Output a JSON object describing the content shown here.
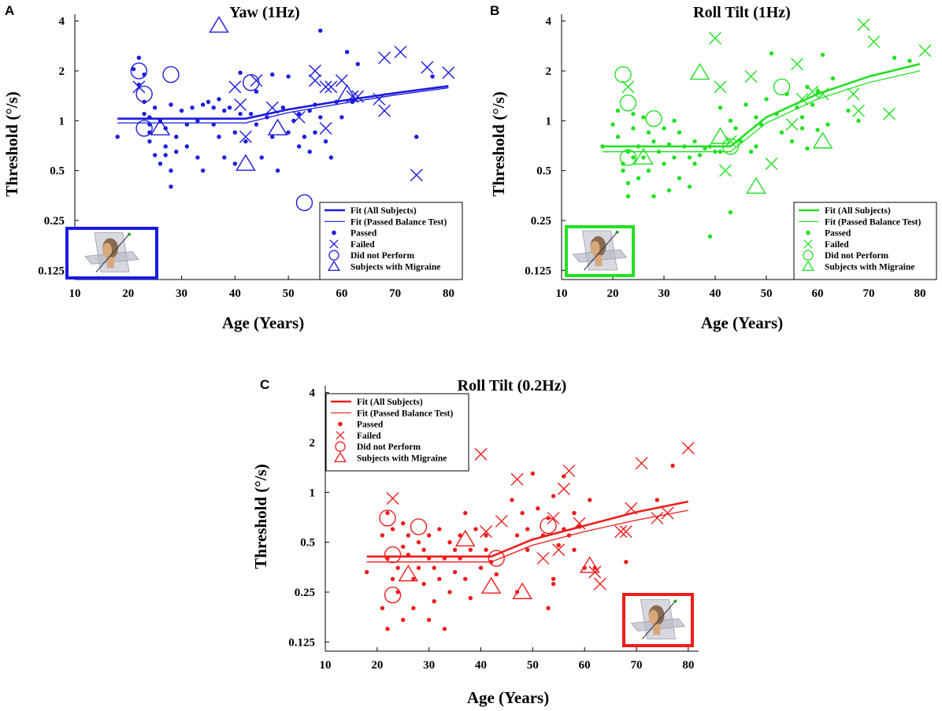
{
  "chart_data": [
    {
      "panel": "A",
      "type": "scatter",
      "title": "Yaw (1Hz)",
      "xlabel": "Age (Years)",
      "ylabel": "Threshold (°/s)",
      "xlim": [
        10,
        82
      ],
      "ylim": [
        0.11,
        4.4
      ],
      "xticks": [
        "10",
        "20",
        "30",
        "40",
        "50",
        "60",
        "70",
        "80"
      ],
      "yticks": [
        "0.125",
        "0.25",
        "0.5",
        "1",
        "2",
        "4"
      ],
      "color": "#1a1adf",
      "legend": [
        "Fit (All Subjects)",
        "Fit (Passed Balance Test)",
        "Passed",
        "Failed",
        "Did not Perform",
        "Subjects with Migraine"
      ],
      "legend_position": "lower-right",
      "inset_position": "lower-left",
      "fit_all": {
        "x": [
          18,
          42,
          50,
          60,
          70,
          80
        ],
        "y": [
          1.03,
          1.03,
          1.17,
          1.32,
          1.47,
          1.62
        ]
      },
      "fit_passed": {
        "x": [
          18,
          42,
          50,
          60,
          70,
          80
        ],
        "y": [
          0.97,
          0.97,
          1.12,
          1.27,
          1.43,
          1.58
        ]
      },
      "passed": [
        [
          18,
          0.8
        ],
        [
          21,
          2.05
        ],
        [
          22,
          2.4
        ],
        [
          23,
          1.9
        ],
        [
          22,
          1.65
        ],
        [
          23,
          1.3
        ],
        [
          23,
          1.1
        ],
        [
          24,
          1.05
        ],
        [
          24,
          0.95
        ],
        [
          24,
          0.85
        ],
        [
          24,
          0.75
        ],
        [
          25,
          1.2
        ],
        [
          25,
          0.62
        ],
        [
          26,
          1.0
        ],
        [
          26,
          0.55
        ],
        [
          27,
          0.9
        ],
        [
          27,
          0.7
        ],
        [
          27,
          0.62
        ],
        [
          28,
          1.25
        ],
        [
          28,
          0.5
        ],
        [
          28,
          0.4
        ],
        [
          29,
          0.8
        ],
        [
          29,
          0.65
        ],
        [
          30,
          1.15
        ],
        [
          31,
          0.95
        ],
        [
          31,
          0.7
        ],
        [
          32,
          1.2
        ],
        [
          33,
          1.0
        ],
        [
          33,
          0.6
        ],
        [
          34,
          1.25
        ],
        [
          34,
          0.5
        ],
        [
          35,
          1.3
        ],
        [
          36,
          1.2
        ],
        [
          36,
          0.95
        ],
        [
          37,
          1.35
        ],
        [
          37,
          0.8
        ],
        [
          38,
          1.15
        ],
        [
          38,
          0.6
        ],
        [
          39,
          1.2
        ],
        [
          40,
          0.85
        ],
        [
          40,
          0.55
        ],
        [
          41,
          1.95
        ],
        [
          41,
          1.1
        ],
        [
          42,
          0.75
        ],
        [
          43,
          1.1
        ],
        [
          44,
          1.5
        ],
        [
          44,
          0.95
        ],
        [
          45,
          0.6
        ],
        [
          46,
          1.05
        ],
        [
          47,
          0.8
        ],
        [
          47,
          1.9
        ],
        [
          48,
          0.5
        ],
        [
          49,
          1.2
        ],
        [
          50,
          0.85
        ],
        [
          50,
          1.85
        ],
        [
          51,
          1.0
        ],
        [
          52,
          0.7
        ],
        [
          52,
          1.1
        ],
        [
          53,
          0.8
        ],
        [
          54,
          1.15
        ],
        [
          54,
          0.65
        ],
        [
          55,
          0.85
        ],
        [
          55,
          1.25
        ],
        [
          56,
          3.5
        ],
        [
          56,
          1.05
        ],
        [
          57,
          0.75
        ],
        [
          58,
          0.6
        ],
        [
          59,
          1.3
        ],
        [
          60,
          1.05
        ],
        [
          61,
          2.6
        ],
        [
          62,
          1.3
        ],
        [
          63,
          2.2
        ],
        [
          74,
          0.8
        ],
        [
          77,
          1.85
        ]
      ],
      "failed": [
        [
          22,
          1.6
        ],
        [
          40,
          1.6
        ],
        [
          41,
          1.25
        ],
        [
          42,
          0.8
        ],
        [
          44,
          1.75
        ],
        [
          47,
          1.2
        ],
        [
          52,
          1.05
        ],
        [
          55,
          1.75
        ],
        [
          55,
          2.0
        ],
        [
          57,
          0.9
        ],
        [
          57,
          1.6
        ],
        [
          58,
          1.6
        ],
        [
          60,
          1.75
        ],
        [
          62,
          1.4
        ],
        [
          63,
          1.4
        ],
        [
          67,
          1.35
        ],
        [
          68,
          1.15
        ],
        [
          68,
          2.4
        ],
        [
          71,
          2.6
        ],
        [
          74,
          0.47
        ],
        [
          76,
          2.1
        ],
        [
          80,
          1.95
        ]
      ],
      "did_not_perform": [
        [
          22,
          2.0
        ],
        [
          23,
          1.45
        ],
        [
          23,
          0.9
        ],
        [
          28,
          1.9
        ],
        [
          43,
          1.7
        ],
        [
          53,
          0.32
        ]
      ],
      "migraine": [
        [
          26,
          0.9
        ],
        [
          37,
          3.75
        ],
        [
          42,
          0.55
        ],
        [
          48,
          0.9
        ],
        [
          61,
          1.45
        ]
      ],
      "inset": {
        "border_color": "#1a1adf"
      }
    },
    {
      "panel": "B",
      "type": "scatter",
      "title": "Roll Tilt (1Hz)",
      "xlabel": "Age (Years)",
      "ylabel": "Threshold (°/s)",
      "xlim": [
        10,
        82
      ],
      "ylim": [
        0.11,
        4.4
      ],
      "xticks": [
        "10",
        "20",
        "30",
        "40",
        "50",
        "60",
        "70",
        "80"
      ],
      "yticks": [
        "0.125",
        "0.25",
        "0.5",
        "1",
        "2",
        "4"
      ],
      "color": "#22e022",
      "legend": [
        "Fit (All Subjects)",
        "Fit (Passed Balance Test)",
        "Passed",
        "Failed",
        "Did not Perform",
        "Subjects with Migraine"
      ],
      "legend_position": "lower-right",
      "inset_position": "lower-left",
      "fit_all": {
        "x": [
          18,
          43,
          50,
          60,
          70,
          80
        ],
        "y": [
          0.7,
          0.7,
          1.05,
          1.45,
          1.85,
          2.2
        ]
      },
      "fit_passed": {
        "x": [
          18,
          43,
          50,
          60,
          70,
          80
        ],
        "y": [
          0.65,
          0.65,
          0.97,
          1.35,
          1.7,
          2.0
        ]
      },
      "passed": [
        [
          18,
          0.7
        ],
        [
          20,
          0.95
        ],
        [
          21,
          1.15
        ],
        [
          21,
          0.8
        ],
        [
          22,
          0.55
        ],
        [
          22,
          0.5
        ],
        [
          23,
          0.65
        ],
        [
          23,
          0.42
        ],
        [
          23,
          0.35
        ],
        [
          24,
          1.1
        ],
        [
          24,
          0.9
        ],
        [
          24,
          0.6
        ],
        [
          25,
          0.7
        ],
        [
          25,
          0.45
        ],
        [
          26,
          1.05
        ],
        [
          26,
          0.6
        ],
        [
          27,
          0.85
        ],
        [
          27,
          0.5
        ],
        [
          28,
          0.75
        ],
        [
          28,
          0.35
        ],
        [
          29,
          0.65
        ],
        [
          30,
          0.9
        ],
        [
          30,
          0.55
        ],
        [
          31,
          0.72
        ],
        [
          31,
          0.38
        ],
        [
          32,
          1.0
        ],
        [
          32,
          0.6
        ],
        [
          33,
          0.45
        ],
        [
          33,
          0.85
        ],
        [
          34,
          0.7
        ],
        [
          35,
          0.6
        ],
        [
          35,
          0.4
        ],
        [
          36,
          0.75
        ],
        [
          36,
          0.55
        ],
        [
          37,
          0.62
        ],
        [
          38,
          0.68
        ],
        [
          39,
          0.7
        ],
        [
          39,
          0.2
        ],
        [
          40,
          0.65
        ],
        [
          41,
          1.2
        ],
        [
          41,
          0.65
        ],
        [
          43,
          1.0
        ],
        [
          43,
          0.28
        ],
        [
          44,
          0.9
        ],
        [
          45,
          0.75
        ],
        [
          46,
          1.25
        ],
        [
          47,
          0.65
        ],
        [
          48,
          0.7
        ],
        [
          48,
          1.05
        ],
        [
          49,
          0.95
        ],
        [
          50,
          1.35
        ],
        [
          51,
          2.55
        ],
        [
          52,
          1.1
        ],
        [
          53,
          0.85
        ],
        [
          54,
          1.45
        ],
        [
          55,
          0.75
        ],
        [
          56,
          1.2
        ],
        [
          57,
          0.9
        ],
        [
          57,
          1.05
        ],
        [
          58,
          1.6
        ],
        [
          58,
          0.68
        ],
        [
          59,
          1.25
        ],
        [
          60,
          0.88
        ],
        [
          60,
          1.5
        ],
        [
          61,
          2.5
        ],
        [
          62,
          0.95
        ],
        [
          63,
          1.8
        ],
        [
          66,
          1.15
        ],
        [
          68,
          1.0
        ],
        [
          75,
          2.4
        ],
        [
          78,
          2.3
        ]
      ],
      "failed": [
        [
          23,
          1.6
        ],
        [
          40,
          3.15
        ],
        [
          41,
          1.6
        ],
        [
          42,
          0.5
        ],
        [
          43,
          0.75
        ],
        [
          47,
          1.85
        ],
        [
          51,
          0.55
        ],
        [
          55,
          0.95
        ],
        [
          56,
          2.2
        ],
        [
          57,
          1.35
        ],
        [
          59,
          1.5
        ],
        [
          61,
          1.45
        ],
        [
          67,
          1.45
        ],
        [
          68,
          1.15
        ],
        [
          69,
          3.8
        ],
        [
          71,
          3.0
        ],
        [
          74,
          1.1
        ],
        [
          81,
          2.65
        ]
      ],
      "did_not_perform": [
        [
          22,
          1.9
        ],
        [
          23,
          1.28
        ],
        [
          23,
          0.6
        ],
        [
          28,
          1.03
        ],
        [
          43,
          0.7
        ],
        [
          53,
          1.6
        ]
      ],
      "migraine": [
        [
          26,
          0.6
        ],
        [
          37,
          1.95
        ],
        [
          41,
          0.8
        ],
        [
          48,
          0.4
        ],
        [
          61,
          0.75
        ]
      ],
      "inset": {
        "border_color": "#22e022"
      }
    },
    {
      "panel": "C",
      "type": "scatter",
      "title": "Roll Tilt (0.2Hz)",
      "xlabel": "Age (Years)",
      "ylabel": "Threshold (°/s)",
      "xlim": [
        10,
        82
      ],
      "ylim": [
        0.11,
        4.4
      ],
      "xticks": [
        "10",
        "20",
        "30",
        "40",
        "50",
        "60",
        "70",
        "80"
      ],
      "yticks": [
        "0.125",
        "0.25",
        "0.5",
        "1",
        "2",
        "4"
      ],
      "color": "#ee1c1c",
      "legend": [
        "Fit (All Subjects)",
        "Fit (Passed Balance Test)",
        "Passed",
        "Failed",
        "Did not Perform",
        "Subjects with Migraine"
      ],
      "legend_position": "top-left",
      "inset_position": "lower-right",
      "fit_all": {
        "x": [
          18,
          42,
          50,
          60,
          70,
          80
        ],
        "y": [
          0.41,
          0.41,
          0.52,
          0.63,
          0.76,
          0.88
        ]
      },
      "fit_passed": {
        "x": [
          18,
          42,
          50,
          60,
          70,
          80
        ],
        "y": [
          0.38,
          0.38,
          0.48,
          0.58,
          0.68,
          0.78
        ]
      },
      "passed": [
        [
          18,
          0.33
        ],
        [
          21,
          0.2
        ],
        [
          21,
          0.55
        ],
        [
          22,
          0.75
        ],
        [
          22,
          0.15
        ],
        [
          22,
          0.4
        ],
        [
          23,
          0.3
        ],
        [
          23,
          0.6
        ],
        [
          24,
          0.35
        ],
        [
          24,
          0.25
        ],
        [
          25,
          0.65
        ],
        [
          25,
          0.47
        ],
        [
          25,
          0.17
        ],
        [
          26,
          0.42
        ],
        [
          26,
          0.55
        ],
        [
          27,
          0.3
        ],
        [
          27,
          0.2
        ],
        [
          28,
          0.5
        ],
        [
          28,
          0.35
        ],
        [
          29,
          0.45
        ],
        [
          29,
          0.28
        ],
        [
          30,
          0.55
        ],
        [
          30,
          0.4
        ],
        [
          30,
          0.17
        ],
        [
          31,
          0.35
        ],
        [
          31,
          0.22
        ],
        [
          32,
          0.6
        ],
        [
          32,
          0.3
        ],
        [
          33,
          0.4
        ],
        [
          33,
          0.15
        ],
        [
          34,
          0.5
        ],
        [
          34,
          0.25
        ],
        [
          35,
          0.45
        ],
        [
          35,
          0.33
        ],
        [
          36,
          0.55
        ],
        [
          36,
          0.4
        ],
        [
          37,
          0.75
        ],
        [
          37,
          0.3
        ],
        [
          38,
          0.45
        ],
        [
          38,
          0.23
        ],
        [
          39,
          0.6
        ],
        [
          40,
          0.35
        ],
        [
          41,
          0.45
        ],
        [
          41,
          0.55
        ],
        [
          42,
          0.38
        ],
        [
          43,
          0.32
        ],
        [
          46,
          0.9
        ],
        [
          47,
          0.25
        ],
        [
          47,
          0.55
        ],
        [
          48,
          0.75
        ],
        [
          49,
          0.6
        ],
        [
          49,
          0.45
        ],
        [
          50,
          1.3
        ],
        [
          51,
          0.8
        ],
        [
          52,
          0.55
        ],
        [
          53,
          0.7
        ],
        [
          53,
          0.2
        ],
        [
          54,
          0.95
        ],
        [
          54,
          0.3
        ],
        [
          54,
          0.28
        ],
        [
          55,
          0.48
        ],
        [
          56,
          0.6
        ],
        [
          56,
          1.25
        ],
        [
          57,
          0.55
        ],
        [
          58,
          0.75
        ],
        [
          58,
          0.45
        ],
        [
          59,
          0.62
        ],
        [
          60,
          0.35
        ],
        [
          61,
          0.9
        ],
        [
          62,
          0.35
        ],
        [
          68,
          0.38
        ],
        [
          74,
          0.9
        ],
        [
          77,
          1.45
        ]
      ],
      "failed": [
        [
          23,
          0.92
        ],
        [
          40,
          1.7
        ],
        [
          41,
          0.58
        ],
        [
          44,
          0.67
        ],
        [
          47,
          1.2
        ],
        [
          52,
          0.4
        ],
        [
          54,
          0.7
        ],
        [
          55,
          0.45
        ],
        [
          56,
          1.05
        ],
        [
          57,
          1.35
        ],
        [
          59,
          0.65
        ],
        [
          62,
          0.33
        ],
        [
          63,
          0.28
        ],
        [
          67,
          0.58
        ],
        [
          68,
          0.58
        ],
        [
          69,
          0.8
        ],
        [
          71,
          1.5
        ],
        [
          74,
          0.7
        ],
        [
          76,
          0.75
        ],
        [
          80,
          1.85
        ]
      ],
      "did_not_perform": [
        [
          22,
          0.7
        ],
        [
          23,
          0.42
        ],
        [
          23,
          0.24
        ],
        [
          28,
          0.62
        ],
        [
          43,
          0.4
        ],
        [
          53,
          0.63
        ]
      ],
      "migraine": [
        [
          26,
          0.32
        ],
        [
          37,
          0.52
        ],
        [
          42,
          0.27
        ],
        [
          48,
          0.25
        ],
        [
          61,
          0.36
        ]
      ],
      "inset": {
        "border_color": "#ee1c1c"
      }
    }
  ]
}
